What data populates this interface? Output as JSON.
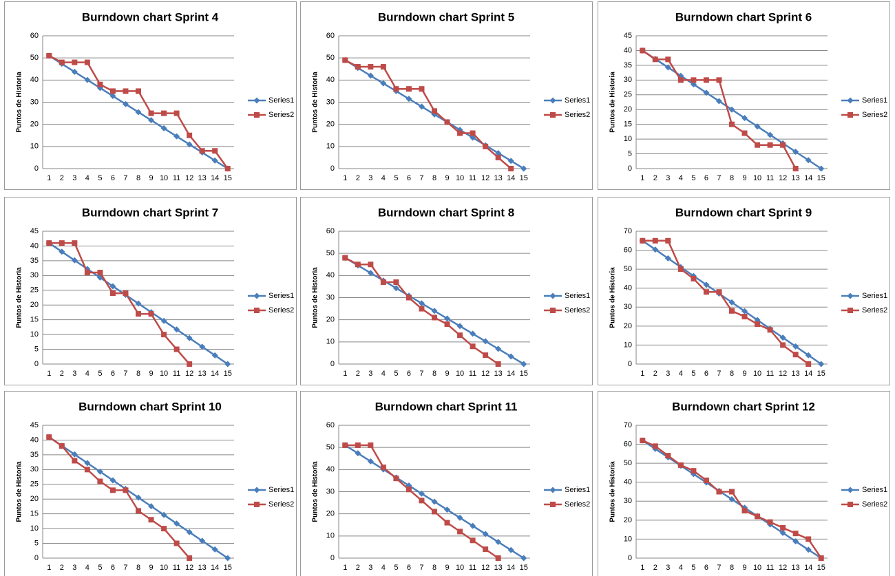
{
  "chart_data": [
    {
      "type": "line",
      "title": "Burndown chart Sprint 4",
      "y_label": "Puntos de Historia",
      "categories": [
        "1",
        "2",
        "3",
        "4",
        "5",
        "6",
        "7",
        "8",
        "9",
        "10",
        "11",
        "12",
        "13",
        "14",
        "15"
      ],
      "ylim": [
        0,
        60
      ],
      "yticks": [
        0,
        10,
        20,
        30,
        40,
        50,
        60
      ],
      "grid": true,
      "legend": "right",
      "series": [
        {
          "name": "Series1",
          "color": "#4a7ebb",
          "marker": "diamond",
          "values": [
            51,
            47.36,
            43.71,
            40.07,
            36.43,
            32.79,
            29.14,
            25.5,
            21.86,
            18.21,
            14.57,
            10.93,
            7.29,
            3.64,
            0
          ]
        },
        {
          "name": "Series2",
          "color": "#be4b48",
          "marker": "square",
          "values": [
            51,
            48,
            48,
            48,
            38,
            35,
            35,
            35,
            25,
            25,
            25,
            15,
            8,
            8,
            0
          ]
        }
      ]
    },
    {
      "type": "line",
      "title": "Burndown chart Sprint 5",
      "y_label": "Puntos de Historia",
      "categories": [
        "1",
        "2",
        "3",
        "4",
        "5",
        "6",
        "7",
        "8",
        "9",
        "10",
        "11",
        "12",
        "13",
        "14",
        "15"
      ],
      "ylim": [
        0,
        60
      ],
      "yticks": [
        0,
        10,
        20,
        30,
        40,
        50,
        60
      ],
      "grid": true,
      "legend": "right",
      "series": [
        {
          "name": "Series1",
          "color": "#4a7ebb",
          "marker": "diamond",
          "values": [
            49,
            45.5,
            42,
            38.5,
            35,
            31.5,
            28,
            24.5,
            21,
            17.5,
            14,
            10.5,
            7,
            3.5,
            0
          ]
        },
        {
          "name": "Series2",
          "color": "#be4b48",
          "marker": "square",
          "values": [
            49,
            46,
            46,
            46,
            36,
            36,
            36,
            26,
            21,
            16,
            16,
            10,
            5,
            0,
            null
          ]
        }
      ]
    },
    {
      "type": "line",
      "title": "Burndown chart Sprint 6",
      "y_label": "Puntos de Historia",
      "categories": [
        "1",
        "2",
        "3",
        "4",
        "5",
        "6",
        "7",
        "8",
        "9",
        "10",
        "11",
        "12",
        "13",
        "14",
        "15"
      ],
      "ylim": [
        0,
        45
      ],
      "yticks": [
        0,
        5,
        10,
        15,
        20,
        25,
        30,
        35,
        40,
        45
      ],
      "grid": true,
      "legend": "right",
      "series": [
        {
          "name": "Series1",
          "color": "#4a7ebb",
          "marker": "diamond",
          "values": [
            40,
            37.14,
            34.29,
            31.43,
            28.57,
            25.71,
            22.86,
            20,
            17.14,
            14.29,
            11.43,
            8.57,
            5.71,
            2.86,
            0
          ]
        },
        {
          "name": "Series2",
          "color": "#be4b48",
          "marker": "square",
          "values": [
            40,
            37,
            37,
            30,
            30,
            30,
            30,
            15,
            12,
            8,
            8,
            8,
            0,
            null,
            null
          ]
        }
      ]
    },
    {
      "type": "line",
      "title": "Burndown chart Sprint 7",
      "y_label": "Puntos de Historia",
      "categories": [
        "1",
        "2",
        "3",
        "4",
        "5",
        "6",
        "7",
        "8",
        "9",
        "10",
        "11",
        "12",
        "13",
        "14",
        "15"
      ],
      "ylim": [
        0,
        45
      ],
      "yticks": [
        0,
        5,
        10,
        15,
        20,
        25,
        30,
        35,
        40,
        45
      ],
      "grid": true,
      "legend": "right",
      "series": [
        {
          "name": "Series1",
          "color": "#4a7ebb",
          "marker": "diamond",
          "values": [
            41,
            38.07,
            35.14,
            32.21,
            29.29,
            26.36,
            23.43,
            20.5,
            17.57,
            14.64,
            11.71,
            8.79,
            5.86,
            2.93,
            0
          ]
        },
        {
          "name": "Series2",
          "color": "#be4b48",
          "marker": "square",
          "values": [
            41,
            41,
            41,
            31,
            31,
            24,
            24,
            17,
            17,
            10,
            5,
            0,
            null,
            null,
            null
          ]
        }
      ]
    },
    {
      "type": "line",
      "title": "Burndown chart Sprint 8",
      "y_label": "Puntos de Historia",
      "categories": [
        "1",
        "2",
        "3",
        "4",
        "5",
        "6",
        "7",
        "8",
        "9",
        "10",
        "11",
        "12",
        "13",
        "14",
        "15"
      ],
      "ylim": [
        0,
        60
      ],
      "yticks": [
        0,
        10,
        20,
        30,
        40,
        50,
        60
      ],
      "grid": true,
      "legend": "right",
      "series": [
        {
          "name": "Series1",
          "color": "#4a7ebb",
          "marker": "diamond",
          "values": [
            48,
            44.57,
            41.14,
            37.71,
            34.29,
            30.86,
            27.43,
            24,
            20.57,
            17.14,
            13.71,
            10.29,
            6.86,
            3.43,
            0
          ]
        },
        {
          "name": "Series2",
          "color": "#be4b48",
          "marker": "square",
          "values": [
            48,
            45,
            45,
            37,
            37,
            30,
            25,
            21,
            18,
            13,
            8,
            4,
            0,
            null,
            null
          ]
        }
      ]
    },
    {
      "type": "line",
      "title": "Burndown chart Sprint 9",
      "y_label": "Puntos de Historia",
      "categories": [
        "1",
        "2",
        "3",
        "4",
        "5",
        "6",
        "7",
        "8",
        "9",
        "10",
        "11",
        "12",
        "13",
        "14",
        "15"
      ],
      "ylim": [
        0,
        70
      ],
      "yticks": [
        0,
        10,
        20,
        30,
        40,
        50,
        60,
        70
      ],
      "grid": true,
      "legend": "right",
      "series": [
        {
          "name": "Series1",
          "color": "#4a7ebb",
          "marker": "diamond",
          "values": [
            65,
            60.36,
            55.71,
            51.07,
            46.43,
            41.79,
            37.14,
            32.5,
            27.86,
            23.21,
            18.57,
            13.93,
            9.29,
            4.64,
            0
          ]
        },
        {
          "name": "Series2",
          "color": "#be4b48",
          "marker": "square",
          "values": [
            65,
            65,
            65,
            50,
            45,
            38,
            38,
            28,
            25,
            21,
            18,
            10,
            5,
            0,
            null
          ]
        }
      ]
    },
    {
      "type": "line",
      "title": "Burndown chart Sprint 10",
      "y_label": "Puntos de Historia",
      "categories": [
        "1",
        "2",
        "3",
        "4",
        "5",
        "6",
        "7",
        "8",
        "9",
        "10",
        "11",
        "12",
        "13",
        "14",
        "15"
      ],
      "ylim": [
        0,
        45
      ],
      "yticks": [
        0,
        5,
        10,
        15,
        20,
        25,
        30,
        35,
        40,
        45
      ],
      "grid": true,
      "legend": "right",
      "series": [
        {
          "name": "Series1",
          "color": "#4a7ebb",
          "marker": "diamond",
          "values": [
            41,
            38.07,
            35.14,
            32.21,
            29.29,
            26.36,
            23.43,
            20.5,
            17.57,
            14.64,
            11.71,
            8.79,
            5.86,
            2.93,
            0
          ]
        },
        {
          "name": "Series2",
          "color": "#be4b48",
          "marker": "square",
          "values": [
            41,
            38,
            33,
            30,
            26,
            23,
            23,
            16,
            13,
            10,
            5,
            0,
            null,
            null,
            null
          ]
        }
      ]
    },
    {
      "type": "line",
      "title": "Burndown chart Sprint 11",
      "y_label": "Puntos de Historia",
      "categories": [
        "1",
        "2",
        "3",
        "4",
        "5",
        "6",
        "7",
        "8",
        "9",
        "10",
        "11",
        "12",
        "13",
        "14",
        "15"
      ],
      "ylim": [
        0,
        60
      ],
      "yticks": [
        0,
        10,
        20,
        30,
        40,
        50,
        60
      ],
      "grid": true,
      "legend": "right",
      "series": [
        {
          "name": "Series1",
          "color": "#4a7ebb",
          "marker": "diamond",
          "values": [
            51,
            47.36,
            43.71,
            40.07,
            36.43,
            32.79,
            29.14,
            25.5,
            21.86,
            18.21,
            14.57,
            10.93,
            7.29,
            3.64,
            0
          ]
        },
        {
          "name": "Series2",
          "color": "#be4b48",
          "marker": "square",
          "values": [
            51,
            51,
            51,
            41,
            36,
            31,
            26,
            21,
            16,
            12,
            8,
            4,
            0,
            null,
            null
          ]
        }
      ]
    },
    {
      "type": "line",
      "title": "Burndown chart Sprint 12",
      "y_label": "Puntos de Historia",
      "categories": [
        "1",
        "2",
        "3",
        "4",
        "5",
        "6",
        "7",
        "8",
        "9",
        "10",
        "11",
        "12",
        "13",
        "14",
        "15"
      ],
      "ylim": [
        0,
        70
      ],
      "yticks": [
        0,
        10,
        20,
        30,
        40,
        50,
        60,
        70
      ],
      "grid": true,
      "legend": "right",
      "series": [
        {
          "name": "Series1",
          "color": "#4a7ebb",
          "marker": "diamond",
          "values": [
            62,
            57.57,
            53.14,
            48.71,
            44.29,
            39.86,
            35.43,
            31,
            26.57,
            22.14,
            17.71,
            13.29,
            8.86,
            4.43,
            0
          ]
        },
        {
          "name": "Series2",
          "color": "#be4b48",
          "marker": "square",
          "values": [
            62,
            59,
            54,
            49,
            46,
            41,
            35,
            35,
            25,
            22,
            19,
            16,
            13,
            10,
            0
          ]
        }
      ]
    }
  ]
}
